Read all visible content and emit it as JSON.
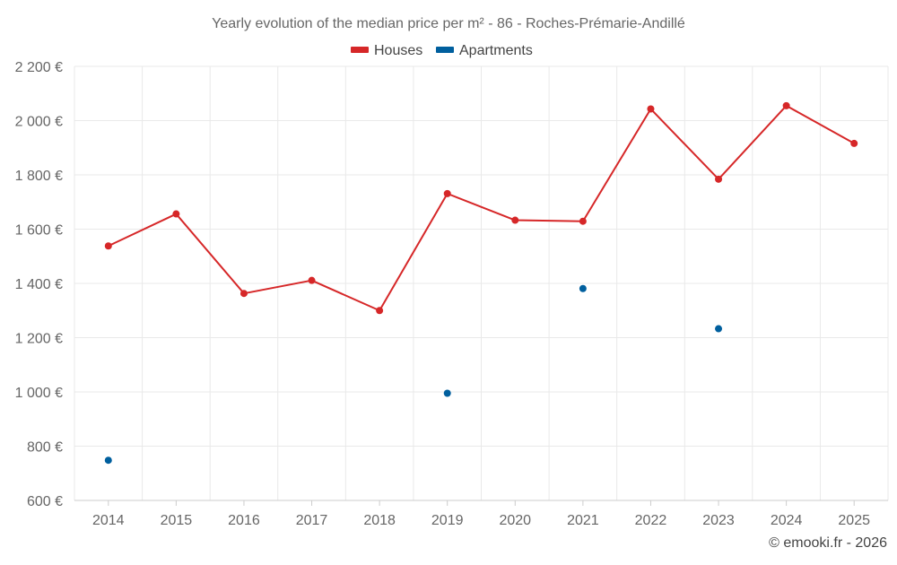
{
  "chart_data": {
    "type": "line",
    "title": "Yearly evolution of the median price per m² - 86 - Roches-Prémarie-Andillé",
    "categories": [
      "2014",
      "2015",
      "2016",
      "2017",
      "2018",
      "2019",
      "2020",
      "2021",
      "2022",
      "2023",
      "2024",
      "2025"
    ],
    "series": [
      {
        "name": "Houses",
        "color": "#d62728",
        "values": [
          1538,
          1656,
          1363,
          1411,
          1300,
          1731,
          1633,
          1629,
          2043,
          1784,
          2055,
          1916
        ]
      },
      {
        "name": "Apartments",
        "color": "#005f9e",
        "values": [
          748,
          null,
          null,
          null,
          null,
          995,
          null,
          1381,
          null,
          1233,
          null,
          null
        ]
      }
    ],
    "ylim": [
      600,
      2200
    ],
    "yticks": [
      600,
      800,
      1000,
      1200,
      1400,
      1600,
      1800,
      2000,
      2200
    ],
    "ytick_labels": [
      "600 €",
      "800 €",
      "1 000 €",
      "1 200 €",
      "1 400 €",
      "1 600 €",
      "1 800 €",
      "2 000 €",
      "2 200 €"
    ],
    "xlabel": "",
    "ylabel": "",
    "legend_position": "top-center",
    "grid": true
  },
  "credit": "© emooki.fr - 2026"
}
